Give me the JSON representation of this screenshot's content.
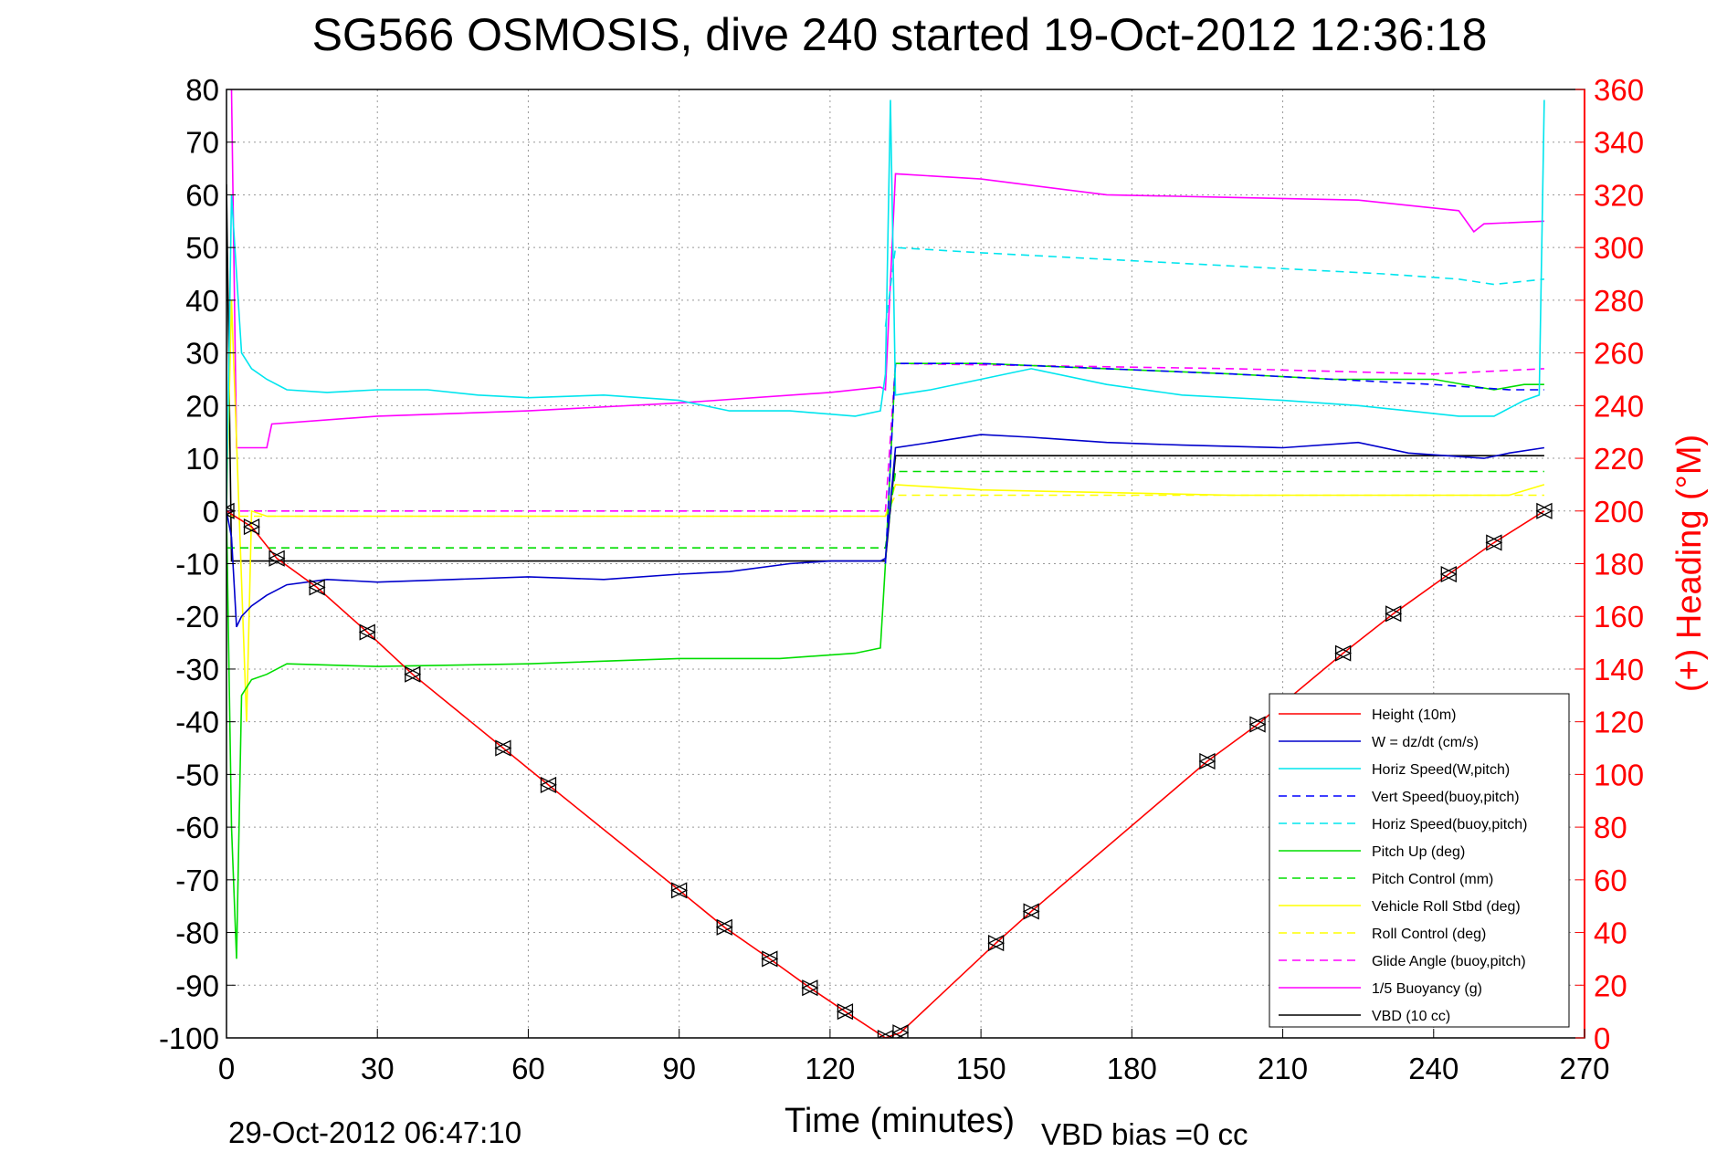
{
  "chart_data": {
    "type": "line",
    "title": "SG566 OSMOSIS, dive 240 started 19-Oct-2012 12:36:18",
    "xlabel": "Time (minutes)",
    "ylabel_right": "(+) Heading (°M)",
    "xlim": [
      0,
      270
    ],
    "ylim": [
      -100,
      80
    ],
    "ylim_right": [
      0,
      360
    ],
    "xticks": [
      "0",
      "30",
      "60",
      "90",
      "120",
      "150",
      "180",
      "210",
      "240",
      "270"
    ],
    "yticks": [
      "80",
      "70",
      "60",
      "50",
      "40",
      "30",
      "20",
      "10",
      "0",
      "-10",
      "-20",
      "-30",
      "-40",
      "-50",
      "-60",
      "-70",
      "-80",
      "-90",
      "-100"
    ],
    "yticks_right": [
      "360",
      "340",
      "320",
      "300",
      "280",
      "260",
      "240",
      "220",
      "200",
      "180",
      "160",
      "140",
      "120",
      "100",
      "80",
      "60",
      "40",
      "20",
      "0"
    ],
    "grid": true,
    "legend_position": "bottom-right",
    "footer_left": "29-Oct-2012 06:47:10",
    "footer_right": "VBD bias =0 cc",
    "series": [
      {
        "name": "Height (10m)",
        "color": "#ff0000",
        "style": "solid",
        "points": [
          [
            0,
            0
          ],
          [
            5,
            -3
          ],
          [
            10,
            -9
          ],
          [
            18,
            -14.5
          ],
          [
            28,
            -23
          ],
          [
            37,
            -31
          ],
          [
            55,
            -45
          ],
          [
            64,
            -52
          ],
          [
            90,
            -72
          ],
          [
            99,
            -79
          ],
          [
            108,
            -85
          ],
          [
            116,
            -90.5
          ],
          [
            123,
            -95
          ],
          [
            131,
            -100
          ],
          [
            134,
            -99
          ],
          [
            153,
            -82
          ],
          [
            160,
            -76
          ],
          [
            195,
            -47.5
          ],
          [
            205,
            -40.5
          ],
          [
            222,
            -27
          ],
          [
            232,
            -19.5
          ],
          [
            243,
            -12
          ],
          [
            252,
            -6
          ],
          [
            262,
            0
          ]
        ]
      },
      {
        "name": "W = dz/dt (cm/s)",
        "color": "#0000cc",
        "style": "solid",
        "points": [
          [
            0,
            0
          ],
          [
            1,
            -5
          ],
          [
            2,
            -22
          ],
          [
            3,
            -20
          ],
          [
            5,
            -18
          ],
          [
            8,
            -16
          ],
          [
            12,
            -14
          ],
          [
            20,
            -13
          ],
          [
            30,
            -13.5
          ],
          [
            45,
            -13
          ],
          [
            60,
            -12.5
          ],
          [
            75,
            -13
          ],
          [
            90,
            -12
          ],
          [
            100,
            -11.5
          ],
          [
            112,
            -10
          ],
          [
            120,
            -9.5
          ],
          [
            130,
            -9.5
          ],
          [
            131,
            -9
          ],
          [
            133,
            12
          ],
          [
            140,
            13
          ],
          [
            150,
            14.5
          ],
          [
            160,
            14
          ],
          [
            175,
            13
          ],
          [
            190,
            12.5
          ],
          [
            210,
            12
          ],
          [
            225,
            13
          ],
          [
            235,
            11
          ],
          [
            250,
            10
          ],
          [
            255,
            11
          ],
          [
            262,
            12
          ]
        ]
      },
      {
        "name": "Horiz Speed(W,pitch)",
        "color": "#00e5ee",
        "style": "solid",
        "points": [
          [
            0,
            0
          ],
          [
            1,
            60
          ],
          [
            2,
            45
          ],
          [
            3,
            30
          ],
          [
            5,
            27
          ],
          [
            8,
            25
          ],
          [
            12,
            23
          ],
          [
            20,
            22.5
          ],
          [
            30,
            23
          ],
          [
            40,
            23
          ],
          [
            50,
            22
          ],
          [
            60,
            21.5
          ],
          [
            75,
            22
          ],
          [
            90,
            21
          ],
          [
            100,
            19
          ],
          [
            112,
            19
          ],
          [
            125,
            18
          ],
          [
            130,
            19
          ],
          [
            131,
            26
          ],
          [
            132,
            78
          ],
          [
            133,
            22
          ],
          [
            140,
            23
          ],
          [
            150,
            25
          ],
          [
            160,
            27
          ],
          [
            175,
            24
          ],
          [
            190,
            22
          ],
          [
            210,
            21
          ],
          [
            225,
            20
          ],
          [
            235,
            19
          ],
          [
            245,
            18
          ],
          [
            252,
            18
          ],
          [
            258,
            21
          ],
          [
            261,
            22
          ],
          [
            262,
            78
          ]
        ]
      },
      {
        "name": "Vert Speed(buoy,pitch)",
        "color": "#0000ff",
        "style": "dashed",
        "points": [
          [
            131,
            -10
          ],
          [
            133,
            28
          ],
          [
            150,
            28
          ],
          [
            175,
            27
          ],
          [
            200,
            26
          ],
          [
            220,
            25
          ],
          [
            240,
            24
          ],
          [
            255,
            23
          ],
          [
            262,
            23
          ]
        ]
      },
      {
        "name": "Horiz Speed(buoy,pitch)",
        "color": "#00e5ee",
        "style": "dashed",
        "points": [
          [
            131,
            35
          ],
          [
            133,
            50
          ],
          [
            150,
            49
          ],
          [
            170,
            48
          ],
          [
            190,
            47
          ],
          [
            210,
            46
          ],
          [
            230,
            45
          ],
          [
            245,
            44
          ],
          [
            252,
            43
          ],
          [
            262,
            44
          ]
        ]
      },
      {
        "name": "Pitch Up (deg)",
        "color": "#00dd00",
        "style": "solid",
        "points": [
          [
            0,
            0
          ],
          [
            1,
            -60
          ],
          [
            2,
            -85
          ],
          [
            3,
            -35
          ],
          [
            5,
            -32
          ],
          [
            8,
            -31
          ],
          [
            12,
            -29
          ],
          [
            30,
            -29.5
          ],
          [
            60,
            -29
          ],
          [
            90,
            -28
          ],
          [
            110,
            -28
          ],
          [
            125,
            -27
          ],
          [
            130,
            -26
          ],
          [
            131,
            -10
          ],
          [
            133,
            28
          ],
          [
            150,
            28
          ],
          [
            175,
            27
          ],
          [
            200,
            26
          ],
          [
            220,
            25
          ],
          [
            240,
            25
          ],
          [
            252,
            23
          ],
          [
            258,
            24
          ],
          [
            262,
            24
          ]
        ]
      },
      {
        "name": "Pitch Control (mm)",
        "color": "#00dd00",
        "style": "dashed",
        "points": [
          [
            0,
            -7
          ],
          [
            131,
            -7
          ],
          [
            133,
            7.5
          ],
          [
            262,
            7.5
          ]
        ]
      },
      {
        "name": "Vehicle Roll Stbd (deg)",
        "color": "#ffff00",
        "style": "solid",
        "points": [
          [
            0,
            0
          ],
          [
            1,
            40
          ],
          [
            4,
            -40
          ],
          [
            5,
            0
          ],
          [
            8,
            -1
          ],
          [
            50,
            -1
          ],
          [
            90,
            -1
          ],
          [
            131,
            -1
          ],
          [
            133,
            5
          ],
          [
            150,
            4
          ],
          [
            175,
            3.5
          ],
          [
            200,
            3
          ],
          [
            225,
            3
          ],
          [
            245,
            3
          ],
          [
            255,
            3
          ],
          [
            262,
            5
          ]
        ]
      },
      {
        "name": "Roll Control (deg)",
        "color": "#ffff00",
        "style": "dashed",
        "points": [
          [
            0,
            -1
          ],
          [
            131,
            -1
          ],
          [
            133,
            3
          ],
          [
            262,
            3
          ]
        ]
      },
      {
        "name": "Glide Angle (buoy,pitch)",
        "color": "#ff00ff",
        "style": "dashed",
        "points": [
          [
            0,
            0
          ],
          [
            131,
            0
          ],
          [
            133,
            28
          ],
          [
            200,
            27
          ],
          [
            240,
            26
          ],
          [
            262,
            27
          ]
        ]
      },
      {
        "name": "1/5 Buoyancy (g)",
        "color": "#ff00ff",
        "style": "solid",
        "points": [
          [
            1,
            80
          ],
          [
            2,
            12
          ],
          [
            8,
            12
          ],
          [
            9,
            16.5
          ],
          [
            30,
            18
          ],
          [
            60,
            19
          ],
          [
            90,
            20.5
          ],
          [
            120,
            22.5
          ],
          [
            130,
            23.5
          ],
          [
            131,
            23
          ],
          [
            133,
            64
          ],
          [
            150,
            63
          ],
          [
            175,
            60
          ],
          [
            200,
            59.5
          ],
          [
            225,
            59
          ],
          [
            245,
            57
          ],
          [
            248,
            53
          ],
          [
            250,
            54.5
          ],
          [
            262,
            55
          ]
        ]
      },
      {
        "name": "VBD (10 cc)",
        "color": "#000000",
        "style": "solid",
        "points": [
          [
            0,
            62
          ],
          [
            1,
            -9.5
          ],
          [
            131,
            -9.5
          ],
          [
            133,
            10.5
          ],
          [
            262,
            10.5
          ]
        ]
      }
    ]
  },
  "legend_labels": [
    "Height (10m)",
    "W = dz/dt (cm/s)",
    "Horiz Speed(W,pitch)",
    "Vert Speed(buoy,pitch)",
    "Horiz Speed(buoy,pitch)",
    "Pitch Up (deg)",
    "Pitch Control (mm)",
    "Vehicle Roll Stbd (deg)",
    "Roll Control (deg)",
    "Glide Angle (buoy,pitch)",
    "1/5 Buoyancy (g)",
    "VBD (10 cc)"
  ]
}
